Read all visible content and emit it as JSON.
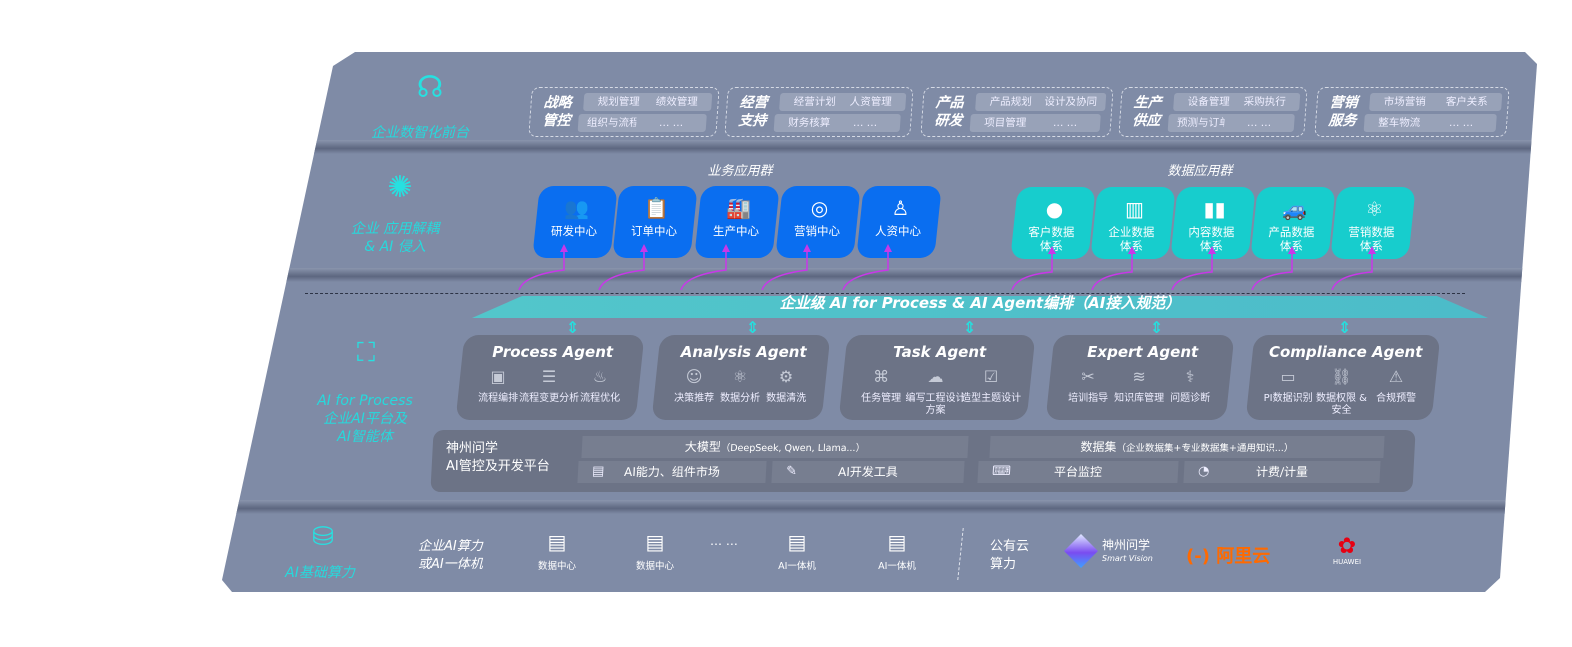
{
  "colors": {
    "frame": "#7f8ba6",
    "accent_teal": "#27e0e0",
    "blue_card": "#0a6ef0",
    "cyan_card": "#17cdcd",
    "agent_box": "#6c7386",
    "arrow_magenta": "#c838e8",
    "aliyun": "#ff6a00",
    "huawei": "#e60012"
  },
  "layers": {
    "front": {
      "label": "企业数智化前台",
      "icon": "brain-head-icon"
    },
    "apps": {
      "label_line1": "企业 应用解耦",
      "label_line2": "& AI 侵入",
      "icon": "molecule-icon"
    },
    "ai": {
      "label_line1": "AI for Process",
      "label_line2": "企业AI平台及",
      "label_line3": "AI智能体",
      "icon": "face-scan-icon"
    },
    "base": {
      "label": "AI基础算力",
      "icon": "database-icon"
    }
  },
  "front_groups": [
    {
      "title1": "战略",
      "title2": "管控",
      "chips": [
        "规划管理",
        "绩效管理",
        "组织与流程",
        "… …"
      ]
    },
    {
      "title1": "经营",
      "title2": "支持",
      "chips": [
        "经营计划",
        "人资管理",
        "财务核算",
        "… …"
      ]
    },
    {
      "title1": "产品",
      "title2": "研发",
      "chips": [
        "产品规划",
        "设计及协同",
        "项目管理",
        "… …"
      ]
    },
    {
      "title1": "生产",
      "title2": "供应",
      "chips": [
        "设备管理",
        "采购执行",
        "预测与订单",
        "… …"
      ]
    },
    {
      "title1": "营销",
      "title2": "服务",
      "chips": [
        "市场营销",
        "客户关系",
        "整车物流",
        "… …"
      ]
    }
  ],
  "business_apps": {
    "title": "业务应用群",
    "items": [
      {
        "label": "研发中心",
        "icon": "team-icon"
      },
      {
        "label": "订单中心",
        "icon": "clipboard-icon"
      },
      {
        "label": "生产中心",
        "icon": "factory-icon"
      },
      {
        "label": "营销中心",
        "icon": "target-icon"
      },
      {
        "label": "人资中心",
        "icon": "person-growth-icon"
      }
    ]
  },
  "data_apps": {
    "title": "数据应用群",
    "items": [
      {
        "label1": "客户数据",
        "label2": "体系",
        "icon": "user-icon"
      },
      {
        "label1": "企业数据",
        "label2": "体系",
        "icon": "building-icon"
      },
      {
        "label1": "内容数据",
        "label2": "体系",
        "icon": "books-icon"
      },
      {
        "label1": "产品数据",
        "label2": "体系",
        "icon": "car-icon"
      },
      {
        "label1": "营销数据",
        "label2": "体系",
        "icon": "atom-icon"
      }
    ]
  },
  "banner": "企业级 AI for Process & AI Agent编排（AI接入规范）",
  "agents": [
    {
      "title": "Process Agent",
      "items": [
        {
          "label": "流程编排",
          "icon": "chart-window-icon"
        },
        {
          "label": "流程变更分析",
          "icon": "list-icon"
        },
        {
          "label": "流程优化",
          "icon": "cake-icon"
        }
      ]
    },
    {
      "title": "Analysis Agent",
      "items": [
        {
          "label": "决策推荐",
          "icon": "head-idea-icon"
        },
        {
          "label": "数据分析",
          "icon": "atom-icon"
        },
        {
          "label": "数据清洗",
          "icon": "robot-icon"
        }
      ]
    },
    {
      "title": "Task Agent",
      "items": [
        {
          "label": "任务管理",
          "icon": "network-icon"
        },
        {
          "label": "编写工程设计方案",
          "icon": "cloud-icon"
        },
        {
          "label": "造型主题设计",
          "icon": "document-check-icon"
        }
      ]
    },
    {
      "title": "Expert Agent",
      "items": [
        {
          "label": "培训指导",
          "icon": "tools-icon"
        },
        {
          "label": "知识库管理",
          "icon": "layers-icon"
        },
        {
          "label": "问题诊断",
          "icon": "diagnosis-icon"
        }
      ]
    },
    {
      "title": "Compliance Agent",
      "items": [
        {
          "label": "PI数据识别",
          "icon": "id-card-icon"
        },
        {
          "label": "数据权限 &",
          "label2": "安全",
          "icon": "shield-link-icon"
        },
        {
          "label": "合规预警",
          "icon": "alert-box-icon"
        }
      ]
    }
  ],
  "platform": {
    "title1": "神州问学",
    "title2": "AI管控及开发平台",
    "model": "大模型",
    "model_note": "（DeepSeek, Qwen, Llama...）",
    "dataset": "数据集",
    "dataset_note": "（企业数据集+专业数据集+通用知识...）",
    "tools": [
      {
        "label": "AI能力、组件市场",
        "icon": "market-icon"
      },
      {
        "label": "AI开发工具",
        "icon": "dev-tool-icon"
      },
      {
        "label": "平台监控",
        "icon": "monitor-icon"
      },
      {
        "label": "计费/计量",
        "icon": "gauge-icon"
      }
    ]
  },
  "base": {
    "onprem_line1": "企业AI算力",
    "onprem_line2": "或AI一体机",
    "servers": [
      {
        "label": "数据中心"
      },
      {
        "label": "数据中心"
      },
      {
        "label": "AI一体机"
      },
      {
        "label": "AI一体机"
      }
    ],
    "ellipsis": "… …",
    "cloud_line1": "公有云",
    "cloud_line2": "算力",
    "logos": [
      {
        "name": "神州问学",
        "sub": "Smart Vision"
      },
      {
        "name": "阿里云",
        "mark": "(-)"
      },
      {
        "name": "HUAWEI"
      }
    ]
  }
}
